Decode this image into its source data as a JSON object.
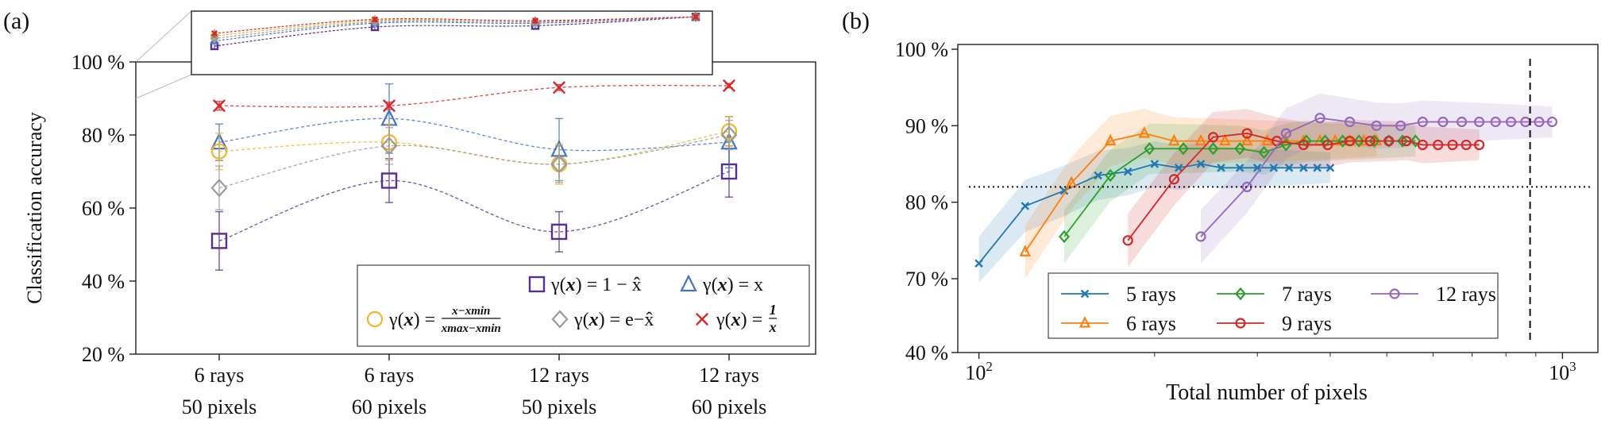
{
  "colors": {
    "purple": "#5a2d91",
    "blue": "#4472c4",
    "yellow": "#f0b52a",
    "gray": "#9a9a9a",
    "red": "#d62728",
    "rays5": "#1f77b4",
    "rays6": "#ff7f0e",
    "rays7": "#2ca02c",
    "rays9": "#d62728",
    "rays12": "#9467bd"
  },
  "panel_a_label": "(a)",
  "panel_b_label": "(b)",
  "chart_data": [
    {
      "type": "line",
      "panel": "(a)",
      "title": "",
      "xlabel": "",
      "ylabel": "Classification accuracy",
      "ylim": [
        20,
        100
      ],
      "yticks": [
        "20 %",
        "40 %",
        "60 %",
        "80 %",
        "100 %"
      ],
      "ytick_values": [
        20,
        40,
        60,
        80,
        100
      ],
      "categories": [
        {
          "line1": "6 rays",
          "line2": "50 pixels"
        },
        {
          "line1": "6 rays",
          "line2": "60 pixels"
        },
        {
          "line1": "12 rays",
          "line2": "50 pixels"
        },
        {
          "line1": "12 rays",
          "line2": "60 pixels"
        }
      ],
      "series": [
        {
          "name": "γ(x) = 1 − x̂",
          "marker": "square",
          "color_key": "purple",
          "values": [
            51,
            67.5,
            53.5,
            70
          ],
          "errors": [
            8,
            6,
            5.5,
            7
          ]
        },
        {
          "name": "γ(x) = x",
          "marker": "triangle",
          "color_key": "blue",
          "values": [
            78,
            84.5,
            76,
            78
          ],
          "errors": [
            5,
            9.5,
            8.5,
            7
          ]
        },
        {
          "name": "γ(x) = (x−xmin)/(xmax−xmin)",
          "marker": "circle",
          "color_key": "yellow",
          "values": [
            75.5,
            78,
            72,
            81
          ],
          "errors": [
            5,
            5,
            5.5,
            4
          ]
        },
        {
          "name": "γ(x) = e^(−x̂)",
          "marker": "diamond",
          "color_key": "gray",
          "values": [
            65.5,
            77,
            72,
            80
          ],
          "errors": [
            6,
            5,
            5,
            4
          ]
        },
        {
          "name": "γ(x) = 1/x",
          "marker": "x",
          "color_key": "red",
          "values": [
            88,
            88,
            93,
            93.5
          ],
          "errors": [
            1.2,
            1.0,
            0.8,
            0.6
          ]
        }
      ],
      "inset": {
        "description": "zoom of upper region",
        "ylim": [
          98,
          102.5
        ],
        "series_values": [
          [
            100,
            101.5,
            101.6,
            102.3
          ],
          [
            100.4,
            101.8,
            101.8,
            102.3
          ],
          [
            100.8,
            102.0,
            101.9,
            102.3
          ],
          [
            100.6,
            101.9,
            101.9,
            102.3
          ],
          [
            101.0,
            102.1,
            102.0,
            102.3
          ]
        ]
      },
      "legend": {
        "location": "lower-right",
        "entries": [
          {
            "series": 0,
            "text_prefix": "γ(",
            "x": "x",
            "text_suffix": ") = 1 − x̂"
          },
          {
            "series": 1,
            "text_prefix": "γ(",
            "x": "x",
            "text_suffix": ") = x"
          },
          {
            "series": 2,
            "text_prefix": "γ(",
            "x": "x",
            "text_suffix": ") =",
            "frac_num": "x−xmin",
            "frac_den": "xmax−xmin"
          },
          {
            "series": 3,
            "text_prefix": "γ(",
            "x": "x",
            "text_suffix": ") = e−x̂"
          },
          {
            "series": 4,
            "text_prefix": "γ(",
            "x": "x",
            "text_suffix": ") =",
            "frac_num": "1",
            "frac_den": "x"
          }
        ]
      }
    },
    {
      "type": "line",
      "panel": "(b)",
      "xscale": "log",
      "xlabel": "Total number of pixels",
      "ylabel": "",
      "xlim": [
        92,
        1150
      ],
      "xticks": [
        {
          "value": 100,
          "label": "10",
          "exp": "2"
        },
        {
          "value": 1000,
          "label": "10",
          "exp": "3"
        }
      ],
      "yticks": [
        {
          "label": "40 %",
          "pos": 40
        },
        {
          "label": "70 %",
          "pos": 70
        },
        {
          "label": "80 %",
          "pos": 80
        },
        {
          "label": "90 %",
          "pos": 90
        },
        {
          "label": "100 %",
          "pos": 100
        }
      ],
      "ylim": [
        40,
        100
      ],
      "hline_value": 82,
      "vline_value": 880,
      "series": [
        {
          "name": "5 rays",
          "marker": "x",
          "color_key": "rays5",
          "x": [
            100,
            120,
            140,
            160,
            180,
            200,
            220,
            240,
            260,
            280,
            300,
            320,
            340,
            360,
            380,
            400
          ],
          "y": [
            72,
            79.5,
            81.5,
            83.5,
            84,
            85,
            84.5,
            85,
            84.5,
            84.5,
            84.5,
            84.5,
            84.5,
            84.5,
            84.5,
            84.5
          ]
        },
        {
          "name": "6 rays",
          "marker": "triangle",
          "color_key": "rays6",
          "x": [
            120,
            144,
            168,
            192,
            216,
            240,
            264,
            288,
            312,
            336,
            360,
            384,
            408,
            432,
            456,
            480
          ],
          "y": [
            73.5,
            82.5,
            88,
            89,
            88,
            88,
            88,
            88,
            88,
            88,
            88,
            88,
            88,
            88,
            88,
            88
          ]
        },
        {
          "name": "7 rays",
          "marker": "diamond",
          "color_key": "rays7",
          "x": [
            140,
            168,
            196,
            224,
            252,
            280,
            308,
            336,
            364,
            392,
            420,
            448,
            476,
            504,
            532,
            560
          ],
          "y": [
            75.5,
            83.5,
            87,
            87,
            87,
            87,
            86.5,
            87.5,
            88,
            88,
            88,
            88,
            88,
            88,
            88,
            88
          ]
        },
        {
          "name": "9 rays",
          "marker": "circle",
          "color_key": "rays9",
          "x": [
            180,
            216,
            252,
            288,
            324,
            360,
            396,
            432,
            468,
            504,
            540,
            576,
            612,
            648,
            684,
            720
          ],
          "y": [
            75,
            83,
            88.5,
            89,
            88,
            87.5,
            87.5,
            88,
            88,
            88,
            88,
            87.5,
            87.5,
            87.5,
            87.5,
            87.5
          ]
        },
        {
          "name": "12 rays",
          "marker": "circle",
          "color_key": "rays12",
          "x": [
            240,
            288,
            336,
            384,
            432,
            480,
            528,
            576,
            624,
            672,
            720,
            768,
            816,
            864,
            912,
            960
          ],
          "y": [
            75.5,
            82,
            89,
            91,
            90.5,
            90,
            90,
            90.5,
            90.5,
            90.5,
            90.5,
            90.5,
            90.5,
            90.5,
            90.5,
            90.5
          ]
        }
      ],
      "legend": {
        "location": "lower-center",
        "columns": 3
      }
    }
  ]
}
